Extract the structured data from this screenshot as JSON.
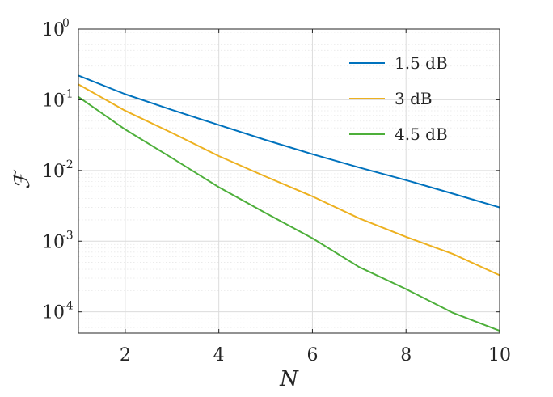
{
  "chart_data": {
    "type": "line",
    "x_scale": "linear",
    "y_scale": "log",
    "xlabel": "N",
    "ylabel": "ℱ",
    "xlim": [
      1,
      10
    ],
    "ylim": [
      5e-05,
      1
    ],
    "x_ticks": [
      2,
      4,
      6,
      8,
      10
    ],
    "x_tick_labels": [
      "2",
      "4",
      "6",
      "8",
      "10"
    ],
    "y_ticks": [
      0.0001,
      0.001,
      0.01,
      0.1,
      1
    ],
    "y_tick_labels": [
      {
        "base": "10",
        "exp": "-4"
      },
      {
        "base": "10",
        "exp": "-3"
      },
      {
        "base": "10",
        "exp": "-2"
      },
      {
        "base": "10",
        "exp": "-1"
      },
      {
        "base": "10",
        "exp": "0"
      }
    ],
    "grid": true,
    "minor_grid": true,
    "legend_position": "top-right",
    "x": [
      1,
      2,
      3,
      4,
      5,
      6,
      7,
      8,
      9,
      10
    ],
    "series": [
      {
        "name": "1.5 dB",
        "color": "#0072BD",
        "values": [
          0.22,
          0.12,
          0.072,
          0.044,
          0.027,
          0.017,
          0.011,
          0.0073,
          0.0047,
          0.003
        ]
      },
      {
        "name": "3 dB",
        "color": "#EDB120",
        "values": [
          0.165,
          0.07,
          0.034,
          0.016,
          0.0082,
          0.0043,
          0.0021,
          0.00115,
          0.00066,
          0.00033
        ]
      },
      {
        "name": "4.5 dB",
        "color": "#4DAF3A",
        "values": [
          0.11,
          0.038,
          0.015,
          0.0058,
          0.0025,
          0.0011,
          0.00043,
          0.00021,
          9.7e-05,
          5.4e-05
        ]
      }
    ]
  }
}
